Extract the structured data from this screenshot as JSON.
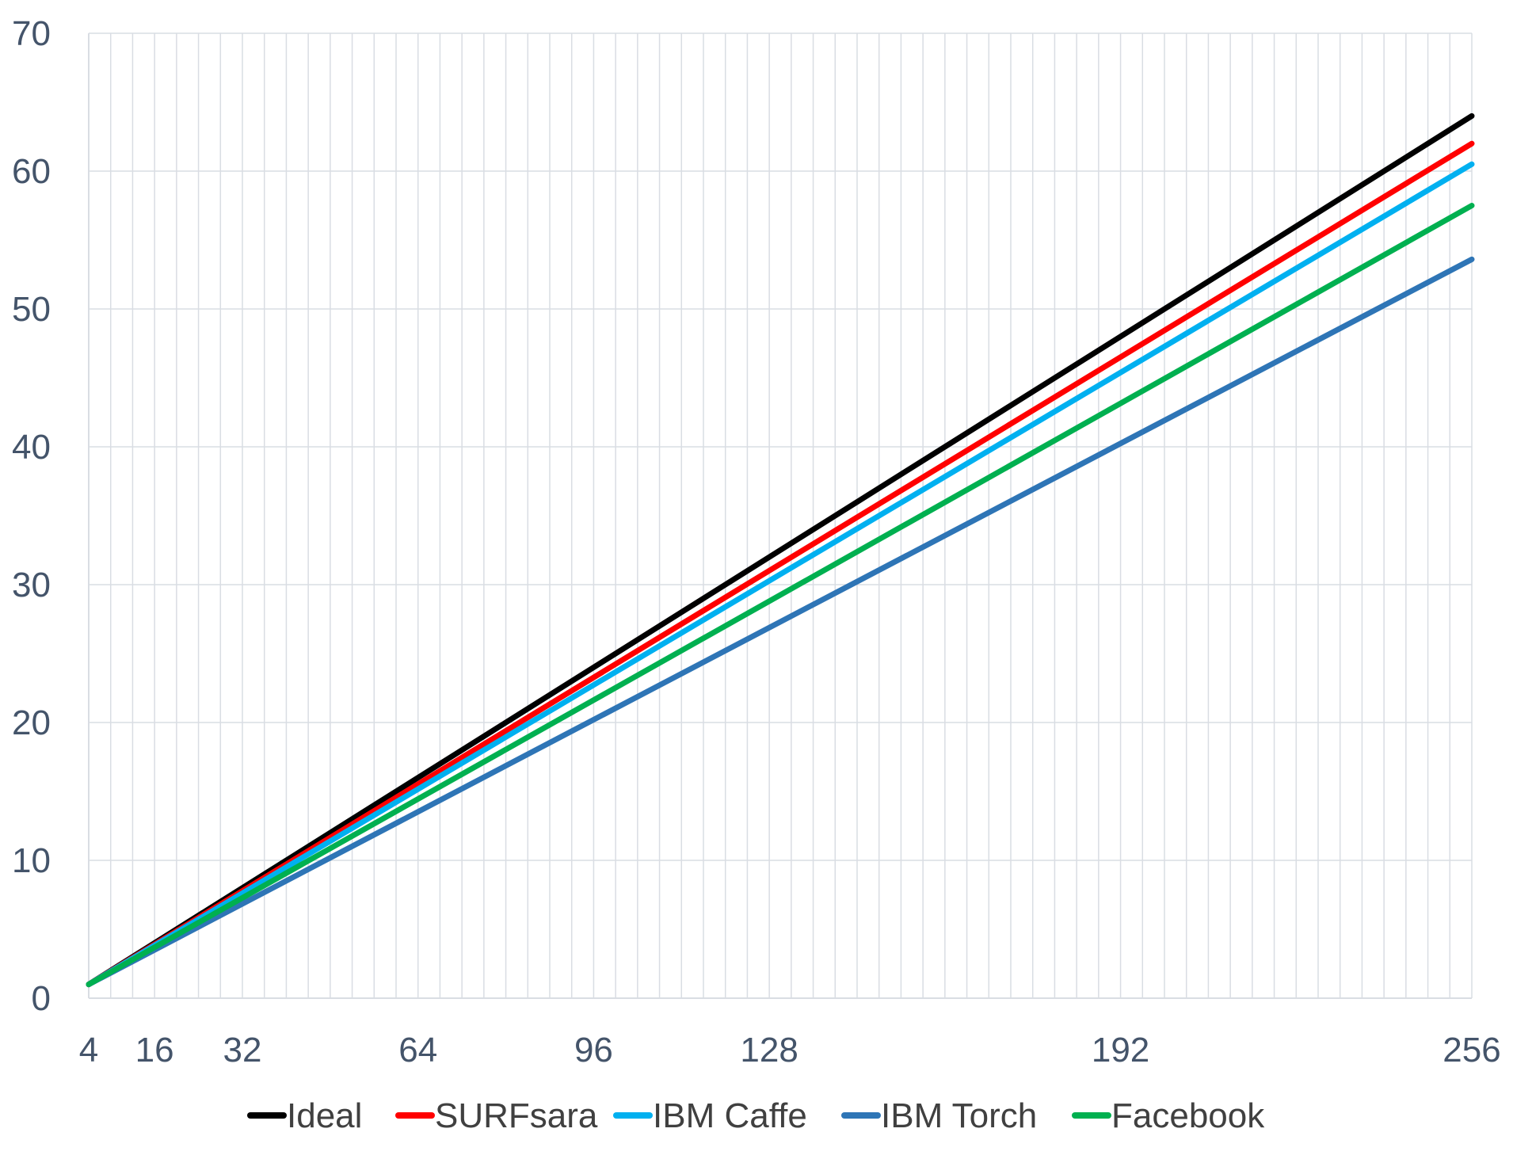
{
  "chart_data": {
    "type": "line",
    "title": "",
    "xlabel": "",
    "ylabel": "",
    "xlim": [
      4,
      256
    ],
    "ylim": [
      0,
      70
    ],
    "x_ticks": [
      4,
      16,
      32,
      64,
      96,
      128,
      192,
      256
    ],
    "x_tick_labels": [
      "4",
      "16",
      "32",
      "64",
      "96",
      "128",
      "192",
      "256"
    ],
    "y_ticks": [
      0,
      10,
      20,
      30,
      40,
      50,
      60,
      70
    ],
    "y_tick_labels": [
      "0",
      "10",
      "20",
      "30",
      "40",
      "50",
      "60",
      "70"
    ],
    "grid": true,
    "legend_position": "bottom",
    "x": [
      4,
      256
    ],
    "series": [
      {
        "name": "Ideal",
        "color": "#000000",
        "values": [
          1,
          64
        ]
      },
      {
        "name": "SURFsara",
        "color": "#ff0000",
        "values": [
          1,
          62
        ]
      },
      {
        "name": "IBM Caffe",
        "color": "#00b0f0",
        "values": [
          1,
          60.5
        ]
      },
      {
        "name": "IBM Torch",
        "color": "#2e75b6",
        "values": [
          1,
          53.6
        ]
      },
      {
        "name": "Facebook",
        "color": "#00b050",
        "values": [
          1,
          57.5
        ]
      }
    ]
  }
}
